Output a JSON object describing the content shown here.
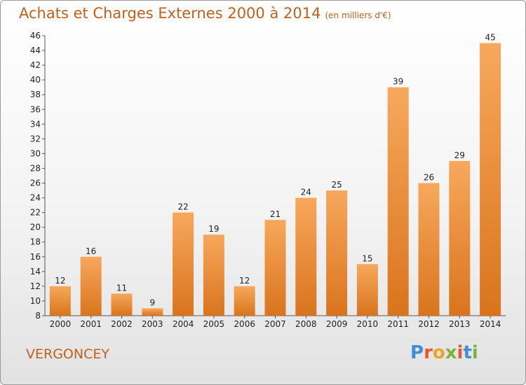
{
  "title": "Achats et Charges Externes 2000 à 2014",
  "subtitle": "(en milliers d'€)",
  "commune": "VERGONCEY",
  "logo": {
    "letters": [
      "P",
      "r",
      "o",
      "x",
      "i",
      "t",
      "i"
    ],
    "colors": [
      "#3f8fd6",
      "#e8572a",
      "#f2a12a",
      "#7cb340",
      "#e8572a",
      "#3f8fd6",
      "#7cb340"
    ]
  },
  "colors": {
    "bar_light": "#f7a85c",
    "bar_dark": "#d9741d",
    "title": "#c0601c"
  },
  "chart_data": {
    "type": "bar",
    "title": "Achats et Charges Externes 2000 à 2014",
    "subtitle": "(en milliers d'€)",
    "categories": [
      "2000",
      "2001",
      "2002",
      "2003",
      "2004",
      "2005",
      "2006",
      "2007",
      "2008",
      "2009",
      "2010",
      "2011",
      "2012",
      "2013",
      "2014"
    ],
    "values": [
      12,
      16,
      11,
      9,
      22,
      19,
      12,
      21,
      24,
      25,
      15,
      39,
      26,
      29,
      45
    ],
    "ylim": [
      8,
      46
    ],
    "yticks": [
      8,
      10,
      12,
      14,
      16,
      18,
      20,
      22,
      24,
      26,
      28,
      30,
      32,
      34,
      36,
      38,
      40,
      42,
      44,
      46
    ],
    "grid": false,
    "data_labels": true
  }
}
